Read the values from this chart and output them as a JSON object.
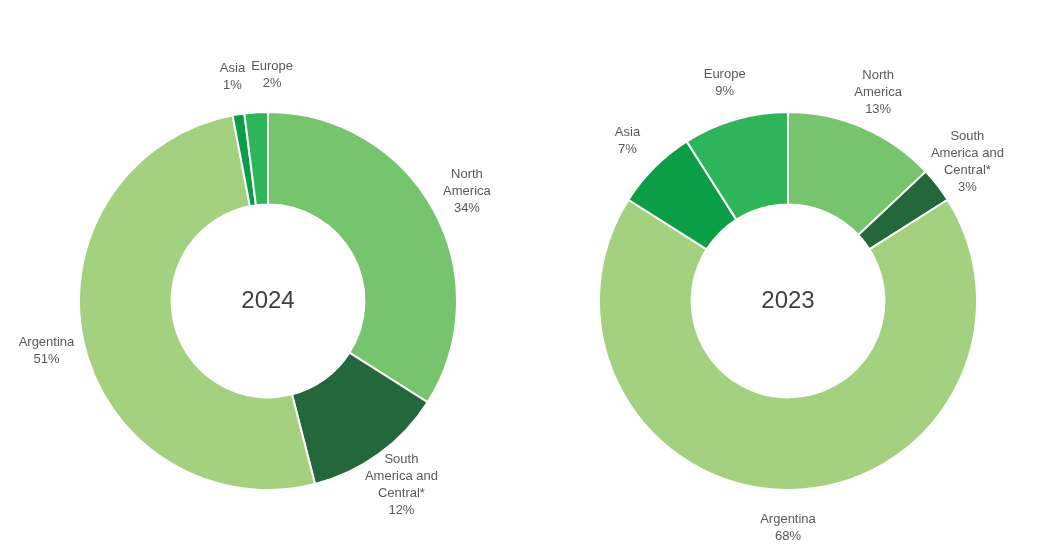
{
  "chart_data": [
    {
      "type": "donut",
      "title": "2024",
      "categories": [
        "North America",
        "South America and Central*",
        "Argentina",
        "Asia",
        "Europe"
      ],
      "values": [
        34,
        12,
        51,
        1,
        2
      ],
      "value_labels": [
        "34%",
        "12%",
        "51%",
        "1%",
        "2%"
      ],
      "colors": [
        "#77c46f",
        "#23673b",
        "#a3d17f",
        "#0a9e47",
        "#2eb55a"
      ],
      "legend": false
    },
    {
      "type": "donut",
      "title": "2023",
      "categories": [
        "North America",
        "South America and Central*",
        "Argentina",
        "Asia",
        "Europe"
      ],
      "values": [
        13,
        3,
        68,
        7,
        9
      ],
      "value_labels": [
        "13%",
        "3%",
        "68%",
        "7%",
        "9%"
      ],
      "colors": [
        "#77c46f",
        "#23673b",
        "#a3d17f",
        "#0a9e47",
        "#2eb55a"
      ],
      "legend": false
    }
  ]
}
